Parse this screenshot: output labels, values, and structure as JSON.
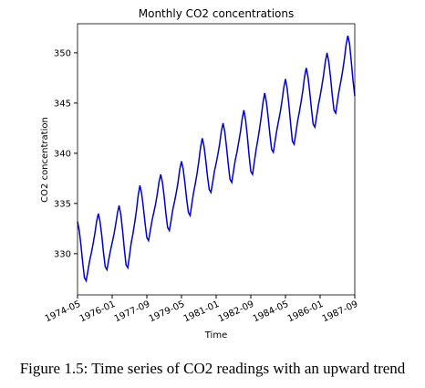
{
  "chart_data": {
    "type": "line",
    "title": "Monthly CO2 concentrations",
    "xlabel": "Time",
    "ylabel": "CO2 concentration",
    "caption": "Figure 1.5: Time series of CO2 readings with an upward trend",
    "color": "#0000cc",
    "x": [
      "1974-05",
      "1974-06",
      "1974-07",
      "1974-08",
      "1974-09",
      "1974-10",
      "1974-11",
      "1974-12",
      "1975-01",
      "1975-02",
      "1975-03",
      "1975-04",
      "1975-05",
      "1975-06",
      "1975-07",
      "1975-08",
      "1975-09",
      "1975-10",
      "1975-11",
      "1975-12",
      "1976-01",
      "1976-02",
      "1976-03",
      "1976-04",
      "1976-05",
      "1976-06",
      "1976-07",
      "1976-08",
      "1976-09",
      "1976-10",
      "1976-11",
      "1976-12",
      "1977-01",
      "1977-02",
      "1977-03",
      "1977-04",
      "1977-05",
      "1977-06",
      "1977-07",
      "1977-08",
      "1977-09",
      "1977-10",
      "1977-11",
      "1977-12",
      "1978-01",
      "1978-02",
      "1978-03",
      "1978-04",
      "1978-05",
      "1978-06",
      "1978-07",
      "1978-08",
      "1978-09",
      "1978-10",
      "1978-11",
      "1978-12",
      "1979-01",
      "1979-02",
      "1979-03",
      "1979-04",
      "1979-05",
      "1979-06",
      "1979-07",
      "1979-08",
      "1979-09",
      "1979-10",
      "1979-11",
      "1979-12",
      "1980-01",
      "1980-02",
      "1980-03",
      "1980-04",
      "1980-05",
      "1980-06",
      "1980-07",
      "1980-08",
      "1980-09",
      "1980-10",
      "1980-11",
      "1980-12",
      "1981-01",
      "1981-02",
      "1981-03",
      "1981-04",
      "1981-05",
      "1981-06",
      "1981-07",
      "1981-08",
      "1981-09",
      "1981-10",
      "1981-11",
      "1981-12",
      "1982-01",
      "1982-02",
      "1982-03",
      "1982-04",
      "1982-05",
      "1982-06",
      "1982-07",
      "1982-08",
      "1982-09",
      "1982-10",
      "1982-11",
      "1982-12",
      "1983-01",
      "1983-02",
      "1983-03",
      "1983-04",
      "1983-05",
      "1983-06",
      "1983-07",
      "1983-08",
      "1983-09",
      "1983-10",
      "1983-11",
      "1983-12",
      "1984-01",
      "1984-02",
      "1984-03",
      "1984-04",
      "1984-05",
      "1984-06",
      "1984-07",
      "1984-08",
      "1984-09",
      "1984-10",
      "1984-11",
      "1984-12",
      "1985-01",
      "1985-02",
      "1985-03",
      "1985-04",
      "1985-05",
      "1985-06",
      "1985-07",
      "1985-08",
      "1985-09",
      "1985-10",
      "1985-11",
      "1985-12",
      "1986-01",
      "1986-02",
      "1986-03",
      "1986-04",
      "1986-05",
      "1986-06",
      "1986-07",
      "1986-08",
      "1986-09",
      "1986-10",
      "1986-11",
      "1986-12",
      "1987-01",
      "1987-02",
      "1987-03",
      "1987-04",
      "1987-05",
      "1987-06",
      "1987-07",
      "1987-08",
      "1987-09"
    ],
    "values": [
      333.2,
      332.3,
      330.8,
      329.1,
      327.6,
      327.3,
      328.3,
      329.3,
      330.1,
      331.0,
      332.0,
      333.2,
      334.0,
      333.2,
      331.8,
      330.1,
      328.7,
      328.4,
      329.4,
      330.3,
      331.1,
      331.9,
      332.9,
      334.0,
      334.8,
      333.9,
      332.3,
      330.5,
      328.9,
      328.6,
      329.8,
      331.1,
      332.0,
      333.1,
      334.3,
      335.8,
      336.8,
      336.0,
      334.6,
      333.0,
      331.6,
      331.3,
      332.3,
      333.3,
      334.1,
      334.9,
      335.9,
      337.1,
      337.9,
      337.1,
      335.7,
      334.0,
      332.6,
      332.3,
      333.3,
      334.4,
      335.2,
      336.1,
      337.1,
      338.4,
      339.2,
      338.4,
      337.0,
      335.4,
      334.1,
      333.8,
      335.0,
      336.1,
      337.0,
      338.0,
      339.2,
      340.6,
      341.5,
      340.7,
      339.3,
      337.7,
      336.4,
      336.1,
      337.1,
      338.2,
      339.0,
      339.9,
      340.9,
      342.2,
      343.0,
      342.1,
      340.6,
      338.9,
      337.4,
      337.1,
      338.2,
      339.3,
      340.1,
      341.1,
      342.1,
      343.4,
      344.3,
      343.3,
      341.7,
      339.8,
      338.2,
      337.9,
      339.1,
      340.3,
      341.3,
      342.4,
      343.6,
      345.0,
      346.0,
      345.1,
      343.6,
      341.9,
      340.4,
      340.1,
      341.2,
      342.3,
      343.2,
      344.1,
      345.2,
      346.5,
      347.4,
      346.4,
      344.8,
      342.9,
      341.2,
      340.9,
      342.0,
      343.2,
      344.1,
      345.1,
      346.2,
      347.6,
      348.5,
      347.6,
      346.1,
      344.4,
      342.9,
      342.6,
      343.7,
      344.8,
      345.7,
      346.7,
      347.8,
      349.1,
      350.0,
      349.1,
      347.6,
      345.8,
      344.3,
      344.0,
      345.2,
      346.3,
      347.2,
      348.2,
      349.4,
      350.8,
      351.7,
      350.9,
      349.1,
      347.2,
      345.7
    ],
    "xlim": [
      "1974-05",
      "1987-09"
    ],
    "xticks": [
      "1974-05",
      "1976-01",
      "1977-09",
      "1979-05",
      "1981-01",
      "1982-09",
      "1984-05",
      "1986-01",
      "1987-09"
    ],
    "ylim": [
      325.9,
      352.9
    ],
    "yticks": [
      330,
      335,
      340,
      345,
      350
    ]
  }
}
